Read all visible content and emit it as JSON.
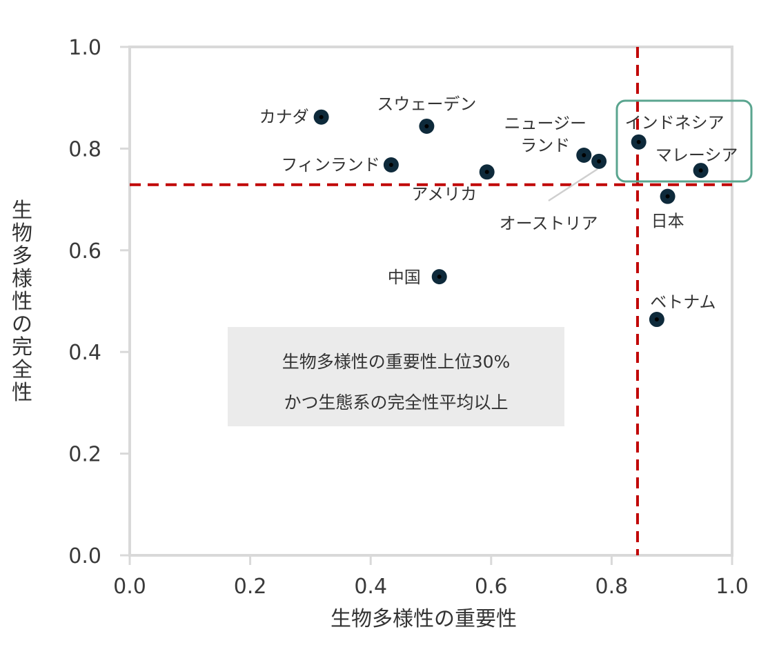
{
  "chart_data": {
    "type": "scatter",
    "xlabel": "生物多様性の重要性",
    "ylabel": "生物多様性の完全性",
    "xlim": [
      0,
      1.0
    ],
    "ylim": [
      0,
      1.0
    ],
    "xticks": [
      "0.0",
      "0.2",
      "0.4",
      "0.6",
      "0.8",
      "1.0"
    ],
    "yticks": [
      "0.0",
      "0.2",
      "0.4",
      "0.6",
      "0.8",
      "1.0"
    ],
    "grid": false,
    "points": [
      {
        "label": "カナダ",
        "x": 0.318,
        "y": 0.862
      },
      {
        "label": "スウェーデン",
        "x": 0.493,
        "y": 0.844
      },
      {
        "label": "フィンランド",
        "x": 0.434,
        "y": 0.768
      },
      {
        "label": "アメリカ",
        "x": 0.593,
        "y": 0.754
      },
      {
        "label": "ニュージー",
        "label2": "ランド",
        "x": 0.754,
        "y": 0.787
      },
      {
        "label": "オーストリア",
        "x": 0.779,
        "y": 0.775
      },
      {
        "label": "インドネシア",
        "x": 0.845,
        "y": 0.813
      },
      {
        "label": "マレーシア",
        "x": 0.948,
        "y": 0.757
      },
      {
        "label": "日本",
        "x": 0.893,
        "y": 0.706
      },
      {
        "label": "中国",
        "x": 0.514,
        "y": 0.548
      },
      {
        "label": "ベトナム",
        "x": 0.875,
        "y": 0.464
      }
    ],
    "reference_lines": {
      "x": 0.843,
      "y": 0.729
    },
    "annotation": [
      "生物多様性の重要性上位30%",
      "かつ生態系の完全性平均以上"
    ],
    "colors": {
      "marker": "#0e2a3b",
      "refline": "#c00000",
      "highlight": "#5aa58f",
      "axis": "#d9d9d9",
      "note_bg": "#ebebeb"
    }
  }
}
